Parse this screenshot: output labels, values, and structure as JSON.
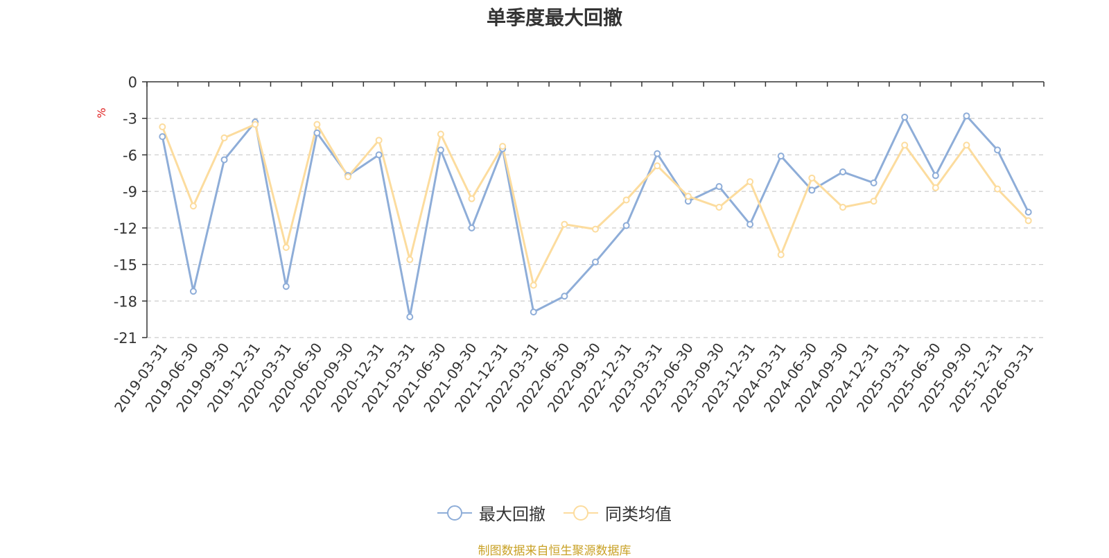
{
  "chart_data": {
    "type": "line",
    "title": "单季度最大回撤",
    "ylabel": "%",
    "ylim": [
      -21,
      0
    ],
    "yticks": [
      0,
      -3,
      -6,
      -9,
      -12,
      -15,
      -18,
      -21
    ],
    "grid": true,
    "legend_position": "bottom-center",
    "categories": [
      "2019-03-31",
      "2019-06-30",
      "2019-09-30",
      "2019-12-31",
      "2020-03-31",
      "2020-06-30",
      "2020-09-30",
      "2020-12-31",
      "2021-03-31",
      "2021-06-30",
      "2021-09-30",
      "2021-12-31",
      "2022-03-31",
      "2022-06-30",
      "2022-09-30",
      "2022-12-31",
      "2023-03-31",
      "2023-06-30",
      "2023-09-30",
      "2023-12-31",
      "2024-03-31",
      "2024-06-30",
      "2024-09-30",
      "2024-12-31",
      "2025-03-31",
      "2025-06-30",
      "2025-09-30",
      "2025-12-31",
      "2026-03-31"
    ],
    "series": [
      {
        "name": "最大回撤",
        "color": "#8eadd8",
        "values": [
          -4.5,
          -17.2,
          -6.4,
          -3.3,
          -16.8,
          -4.2,
          -7.7,
          -6.0,
          -19.3,
          -5.6,
          -12.0,
          -5.5,
          -18.9,
          -17.6,
          -14.8,
          -11.8,
          -5.9,
          -9.8,
          -8.6,
          -11.7,
          -6.1,
          -8.9,
          -7.4,
          -8.3,
          -2.9,
          -7.7,
          -2.8,
          -5.6,
          -10.7
        ]
      },
      {
        "name": "同类均值",
        "color": "#fcdc9e",
        "values": [
          -3.7,
          -10.2,
          -4.6,
          -3.5,
          -13.6,
          -3.5,
          -7.8,
          -4.8,
          -14.6,
          -4.3,
          -9.6,
          -5.3,
          -16.7,
          -11.7,
          -12.1,
          -9.7,
          -6.9,
          -9.4,
          -10.3,
          -8.2,
          -14.2,
          -7.9,
          -10.3,
          -9.8,
          -5.2,
          -8.7,
          -5.2,
          -8.8,
          -11.4
        ]
      }
    ]
  },
  "footer": {
    "source": "制图数据来自恒生聚源数据库"
  }
}
